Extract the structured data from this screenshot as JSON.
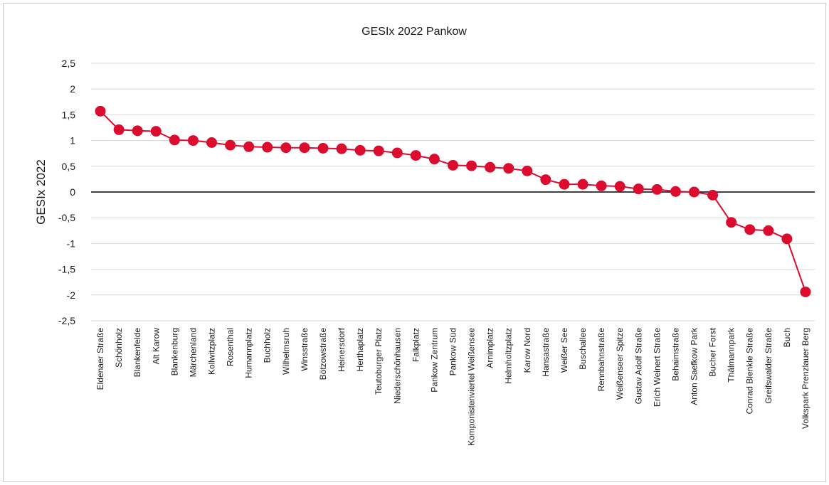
{
  "chart_data": {
    "type": "line",
    "title": "GESIx 2022 Pankow",
    "xlabel": "",
    "ylabel": "GESIx 2022",
    "ylim": [
      -2.5,
      2.5
    ],
    "yticks": [
      "2,5",
      "2",
      "1,5",
      "1",
      "0,5",
      "0",
      "-0,5",
      "-1",
      "-1,5",
      "-2",
      "-2,5"
    ],
    "grid": true,
    "legend": "none",
    "series_color": "#dc0c2f",
    "categories": [
      "Eldenaer Straße",
      "Schönholz",
      "Blankenfelde",
      "Alt Karow",
      "Blankenburg",
      "Märchenland",
      "Kollwitzplatz",
      "Rosenthal",
      "Humannplatz",
      "Buchholz",
      "Wilhelmsruh",
      "Winsstraße",
      "Bötzowstraße",
      "Heinersdorf",
      "Herthaplatz",
      "Teutoburger Platz",
      "Niederschönhausen",
      "Falkplatz",
      "Pankow Zentrum",
      "Pankow Süd",
      "Komponistenviertel Weißensee",
      "Arnimplatz",
      "Helmholtzplatz",
      "Karow Nord",
      "Hansastraße",
      "Weißer See",
      "Buschallee",
      "Rennbahnstraße",
      "Weißenseer Spitze",
      "Gustav Adolf Straße",
      "Erich Weinert Straße",
      "Behaimstraße",
      "Anton Saefkow Park",
      "Bucher Forst",
      "Thälmannpark",
      "Conrad Blenkle Straße",
      "Greifswalder Straße",
      "Buch",
      "Volkspark Prenzlauer Berg"
    ],
    "values": [
      1.57,
      1.21,
      1.19,
      1.18,
      1.01,
      1.0,
      0.96,
      0.91,
      0.88,
      0.87,
      0.86,
      0.86,
      0.85,
      0.84,
      0.81,
      0.8,
      0.76,
      0.71,
      0.64,
      0.52,
      0.51,
      0.48,
      0.46,
      0.41,
      0.24,
      0.15,
      0.15,
      0.12,
      0.11,
      0.06,
      0.05,
      0.01,
      0.0,
      -0.06,
      -0.59,
      -0.73,
      -0.75,
      -0.91,
      -1.94
    ]
  }
}
